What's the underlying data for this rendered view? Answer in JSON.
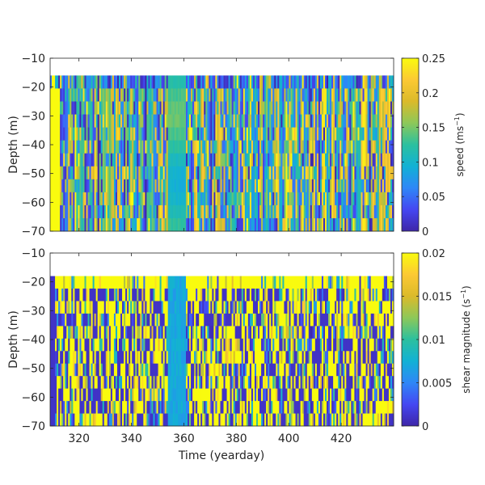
{
  "chart_data": [
    {
      "type": "heatmap",
      "title": "",
      "xlabel": "",
      "ylabel": "Depth (m)",
      "xlim": [
        309,
        440
      ],
      "ylim": [
        -70,
        -10
      ],
      "x_ticks": [
        320,
        340,
        360,
        380,
        400,
        420
      ],
      "y_ticks": [
        -10,
        -20,
        -30,
        -40,
        -50,
        -60,
        -70
      ],
      "x_tick_labels": [],
      "y_tick_labels": [
        "−10",
        "−20",
        "−30",
        "−40",
        "−50",
        "−60",
        "−70"
      ],
      "data_top_depth": -16,
      "colorbar": {
        "label": "speed (ms",
        "label_sup": "−1",
        "label_close": ")",
        "clim": [
          0,
          0.25
        ],
        "ticks": [
          0,
          0.05,
          0.1,
          0.15,
          0.2,
          0.25
        ],
        "tick_labels": [
          "0",
          "0.05",
          "0.1",
          "0.15",
          "0.2",
          "0.25"
        ]
      },
      "colormap": "parula",
      "notable_features": "saturated yellow column at yearday ~309–313; smooth low-variability band near yearday 355–360"
    },
    {
      "type": "heatmap",
      "title": "",
      "xlabel": "Time (yearday)",
      "ylabel": "Depth (m)",
      "xlim": [
        309,
        440
      ],
      "ylim": [
        -70,
        -10
      ],
      "x_ticks": [
        320,
        340,
        360,
        380,
        400,
        420
      ],
      "y_ticks": [
        -10,
        -20,
        -30,
        -40,
        -50,
        -60,
        -70
      ],
      "x_tick_labels": [
        "320",
        "340",
        "360",
        "380",
        "400",
        "420"
      ],
      "y_tick_labels": [
        "−10",
        "−20",
        "−30",
        "−40",
        "−50",
        "−60",
        "−70"
      ],
      "data_top_depth": -18,
      "colorbar": {
        "label": "shear magnitude (s",
        "label_sup": "−1",
        "label_close": ")",
        "clim": [
          0,
          0.02
        ],
        "ticks": [
          0,
          0.005,
          0.01,
          0.015,
          0.02
        ],
        "tick_labels": [
          "0",
          "0.005",
          "0.01",
          "0.015",
          "0.02"
        ]
      },
      "colormap": "parula",
      "notable_features": "yellow band near surface (−18 to −24 m); low-shear band near yearday 355–360"
    }
  ]
}
